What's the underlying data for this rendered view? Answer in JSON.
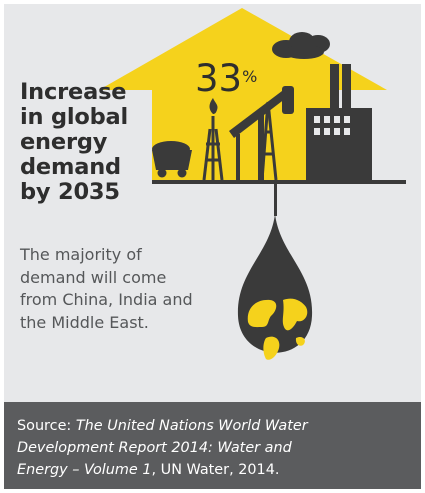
{
  "headline": {
    "lines": [
      "Increase",
      "in global",
      "energy",
      "demand",
      "by 2035"
    ]
  },
  "stat": {
    "value": "33",
    "unit": "%"
  },
  "body": {
    "lines": [
      "The majority of",
      "demand will come",
      "from China, India and",
      "the Middle East."
    ]
  },
  "source": {
    "prefix": "Source: ",
    "title_line1": "The United Nations World Water",
    "title_line2": "Development Report 2014: Water and",
    "title_line3": "Energy – Volume 1",
    "suffix": ", UN Water, 2014."
  },
  "colors": {
    "background": "#e7e8ea",
    "accent_yellow": "#f5d21c",
    "dark_gray": "#3a3a3a",
    "footer": "#5b5c5e"
  },
  "icons": [
    "house-arrow-shape",
    "coal-cart-icon",
    "gas-flare-tower-icon",
    "pumpjack-icon",
    "oil-derrick-icon",
    "factory-icon",
    "smoke-cloud-icon",
    "oil-drop-icon",
    "globe-icon"
  ]
}
